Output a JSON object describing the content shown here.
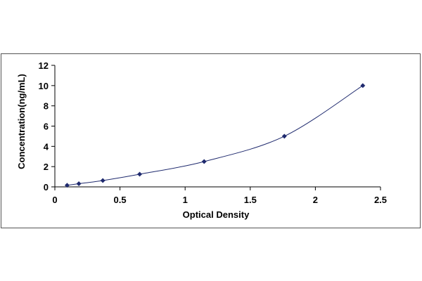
{
  "chart_data": {
    "type": "scatter",
    "title": "",
    "xlabel": "Optical Density",
    "ylabel": "Concentration(ng/mL)",
    "xlim": [
      0,
      2.5
    ],
    "ylim": [
      0,
      12
    ],
    "x_ticks": [
      "0",
      "0.5",
      "1",
      "1.5",
      "2",
      "2.5"
    ],
    "y_ticks": [
      "0",
      "2",
      "4",
      "6",
      "8",
      "10",
      "12"
    ],
    "grid": false,
    "legend": "none",
    "trendline": "smooth curve through points",
    "colors": {
      "marker": "#1f2a6e",
      "line": "#1f2a6e",
      "axis": "#000000",
      "frame": "#555555"
    },
    "series": [
      {
        "x": [
          0.094,
          0.184,
          0.368,
          0.651,
          1.146,
          1.762,
          2.364
        ],
        "y": [
          0.156,
          0.312,
          0.625,
          1.25,
          2.5,
          5,
          10
        ]
      }
    ]
  }
}
